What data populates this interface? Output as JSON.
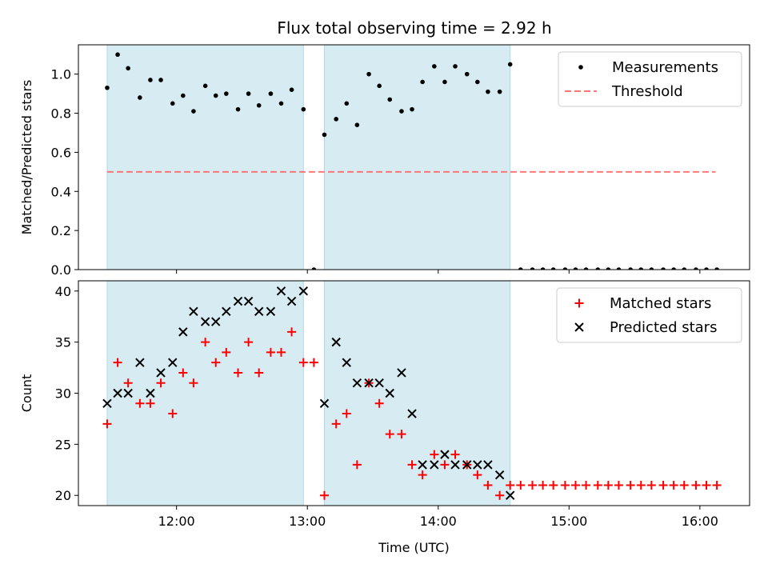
{
  "title": "Flux total observing time = 2.92 h",
  "chart_data": [
    {
      "type": "scatter",
      "panel": "top",
      "ylabel": "Matched/Predicted stars",
      "xlabel": "",
      "xlim": [
        11.25,
        16.38
      ],
      "ylim": [
        0,
        1.15
      ],
      "yticks": [
        0.0,
        0.2,
        0.4,
        0.6,
        0.8,
        1.0
      ],
      "ytick_labels": [
        "0.0",
        "0.2",
        "0.4",
        "0.6",
        "0.8",
        "1.0"
      ],
      "observing_windows": [
        [
          11.47,
          12.97
        ],
        [
          13.13,
          14.55
        ]
      ],
      "threshold": {
        "value": 0.5,
        "x_start": 11.47,
        "x_end": 16.12
      },
      "legend": [
        {
          "label": "Measurements",
          "marker": "dot",
          "color": "#000000"
        },
        {
          "label": "Threshold",
          "marker": "dashed-line",
          "color": "#ff7777"
        }
      ],
      "series": [
        {
          "name": "Measurements",
          "x": [
            11.47,
            11.55,
            11.63,
            11.72,
            11.8,
            11.88,
            11.97,
            12.05,
            12.13,
            12.22,
            12.3,
            12.38,
            12.47,
            12.55,
            12.63,
            12.72,
            12.8,
            12.88,
            12.97,
            13.05,
            13.13,
            13.22,
            13.3,
            13.38,
            13.47,
            13.55,
            13.63,
            13.72,
            13.8,
            13.88,
            13.97,
            14.05,
            14.13,
            14.22,
            14.3,
            14.38,
            14.47,
            14.55,
            14.63,
            14.72,
            14.8,
            14.88,
            14.97,
            15.05,
            15.13,
            15.22,
            15.3,
            15.38,
            15.47,
            15.55,
            15.63,
            15.72,
            15.8,
            15.88,
            15.97,
            16.05,
            16.13
          ],
          "y": [
            0.93,
            1.1,
            1.03,
            0.88,
            0.97,
            0.97,
            0.85,
            0.89,
            0.81,
            0.94,
            0.89,
            0.9,
            0.82,
            0.9,
            0.84,
            0.9,
            0.85,
            0.92,
            0.82,
            0.0,
            0.69,
            0.77,
            0.85,
            0.74,
            1.0,
            0.94,
            0.87,
            0.81,
            0.82,
            0.96,
            1.04,
            0.96,
            1.04,
            1.0,
            0.96,
            0.91,
            0.91,
            1.05,
            0,
            0,
            0,
            0,
            0,
            0,
            0,
            0,
            0,
            0,
            0,
            0,
            0,
            0,
            0,
            0,
            0,
            0,
            0
          ]
        }
      ]
    },
    {
      "type": "scatter",
      "panel": "bottom",
      "ylabel": "Count",
      "xlabel": "Time (UTC)",
      "xlim": [
        11.25,
        16.38
      ],
      "ylim": [
        19,
        41
      ],
      "yticks": [
        20,
        25,
        30,
        35,
        40
      ],
      "ytick_labels": [
        "20",
        "25",
        "30",
        "35",
        "40"
      ],
      "xticks": [
        12,
        13,
        14,
        15,
        16
      ],
      "xtick_labels": [
        "12:00",
        "13:00",
        "14:00",
        "15:00",
        "16:00"
      ],
      "observing_windows": [
        [
          11.47,
          12.97
        ],
        [
          13.13,
          14.55
        ]
      ],
      "legend": [
        {
          "label": "Matched stars",
          "marker": "plus",
          "color": "#ff0000"
        },
        {
          "label": "Predicted stars",
          "marker": "x",
          "color": "#000000"
        }
      ],
      "series": [
        {
          "name": "Matched stars",
          "x": [
            11.47,
            11.55,
            11.63,
            11.72,
            11.8,
            11.88,
            11.97,
            12.05,
            12.13,
            12.22,
            12.3,
            12.38,
            12.47,
            12.55,
            12.63,
            12.72,
            12.8,
            12.88,
            12.97,
            13.05,
            13.13,
            13.22,
            13.3,
            13.38,
            13.47,
            13.55,
            13.63,
            13.72,
            13.8,
            13.88,
            13.97,
            14.05,
            14.13,
            14.22,
            14.3,
            14.38,
            14.47,
            14.55,
            14.63,
            14.72,
            14.8,
            14.88,
            14.97,
            15.05,
            15.13,
            15.22,
            15.3,
            15.38,
            15.47,
            15.55,
            15.63,
            15.72,
            15.8,
            15.88,
            15.97,
            16.05,
            16.13
          ],
          "y": [
            27,
            33,
            31,
            29,
            29,
            31,
            28,
            32,
            31,
            35,
            33,
            34,
            32,
            35,
            32,
            34,
            34,
            36,
            33,
            33,
            20,
            27,
            28,
            23,
            31,
            29,
            26,
            26,
            23,
            22,
            24,
            23,
            24,
            23,
            22,
            21,
            20,
            21,
            21,
            21,
            21,
            21,
            21,
            21,
            21,
            21,
            21,
            21,
            21,
            21,
            21,
            21,
            21,
            21,
            21,
            21,
            21
          ]
        },
        {
          "name": "Predicted stars",
          "x": [
            11.47,
            11.55,
            11.63,
            11.72,
            11.8,
            11.88,
            11.97,
            12.05,
            12.13,
            12.22,
            12.3,
            12.38,
            12.47,
            12.55,
            12.63,
            12.72,
            12.8,
            12.88,
            12.97,
            13.13,
            13.22,
            13.3,
            13.38,
            13.47,
            13.55,
            13.63,
            13.72,
            13.8,
            13.88,
            13.97,
            14.05,
            14.13,
            14.22,
            14.3,
            14.38,
            14.47,
            14.55
          ],
          "y": [
            29,
            30,
            30,
            33,
            30,
            32,
            33,
            36,
            38,
            37,
            37,
            38,
            39,
            39,
            38,
            38,
            40,
            39,
            40,
            29,
            35,
            33,
            31,
            31,
            31,
            30,
            32,
            28,
            23,
            23,
            24,
            23,
            23,
            23,
            23,
            22,
            20
          ]
        }
      ]
    }
  ]
}
